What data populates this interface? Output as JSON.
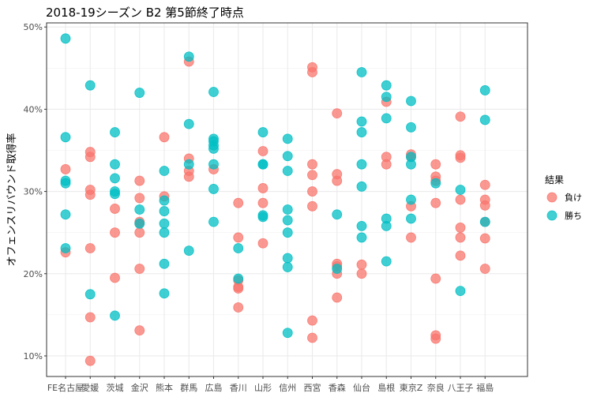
{
  "chart_data": {
    "type": "scatter",
    "title": "2018-19シーズン B2 第5節終了時点",
    "xlabel": "",
    "ylabel": "オフェンスリバウンド取得率",
    "categories": [
      "FE名古屋",
      "愛媛",
      "茨城",
      "金沢",
      "熊本",
      "群馬",
      "広島",
      "香川",
      "山形",
      "信州",
      "西宮",
      "香森",
      "仙台",
      "島根",
      "東京Z",
      "奈良",
      "八王子",
      "福島"
    ],
    "ylim": [
      0.075,
      0.505
    ],
    "yticks": [
      0.1,
      0.2,
      0.3,
      0.4,
      0.5
    ],
    "ytick_labels": [
      "10%",
      "20%",
      "30%",
      "40%",
      "50%"
    ],
    "grid": true,
    "legend": {
      "title": "結果",
      "position": "right"
    },
    "series": [
      {
        "name": "負け",
        "color": "#F8766D",
        "points": [
          [
            "FE名古屋",
            0.327
          ],
          [
            "FE名古屋",
            0.226
          ],
          [
            "愛媛",
            0.348
          ],
          [
            "愛媛",
            0.342
          ],
          [
            "愛媛",
            0.302
          ],
          [
            "愛媛",
            0.296
          ],
          [
            "愛媛",
            0.231
          ],
          [
            "愛媛",
            0.147
          ],
          [
            "愛媛",
            0.094
          ],
          [
            "茨城",
            0.279
          ],
          [
            "茨城",
            0.25
          ],
          [
            "茨城",
            0.195
          ],
          [
            "金沢",
            0.313
          ],
          [
            "金沢",
            0.292
          ],
          [
            "金沢",
            0.263
          ],
          [
            "金沢",
            0.261
          ],
          [
            "金沢",
            0.25
          ],
          [
            "金沢",
            0.206
          ],
          [
            "金沢",
            0.131
          ],
          [
            "熊本",
            0.366
          ],
          [
            "熊本",
            0.294
          ],
          [
            "群馬",
            0.458
          ],
          [
            "群馬",
            0.34
          ],
          [
            "群馬",
            0.325
          ],
          [
            "群馬",
            0.318
          ],
          [
            "広島",
            0.327
          ],
          [
            "香川",
            0.286
          ],
          [
            "香川",
            0.244
          ],
          [
            "香川",
            0.192
          ],
          [
            "香川",
            0.184
          ],
          [
            "香川",
            0.182
          ],
          [
            "香川",
            0.159
          ],
          [
            "山形",
            0.349
          ],
          [
            "山形",
            0.304
          ],
          [
            "山形",
            0.286
          ],
          [
            "山形",
            0.237
          ],
          [
            "西宮",
            0.451
          ],
          [
            "西宮",
            0.445
          ],
          [
            "西宮",
            0.333
          ],
          [
            "西宮",
            0.32
          ],
          [
            "西宮",
            0.3
          ],
          [
            "西宮",
            0.282
          ],
          [
            "西宮",
            0.143
          ],
          [
            "西宮",
            0.122
          ],
          [
            "香森",
            0.395
          ],
          [
            "香森",
            0.321
          ],
          [
            "香森",
            0.313
          ],
          [
            "香森",
            0.212
          ],
          [
            "香森",
            0.209
          ],
          [
            "香森",
            0.2
          ],
          [
            "香森",
            0.171
          ],
          [
            "仙台",
            0.211
          ],
          [
            "仙台",
            0.2
          ],
          [
            "島根",
            0.409
          ],
          [
            "島根",
            0.342
          ],
          [
            "島根",
            0.333
          ],
          [
            "東京Z",
            0.345
          ],
          [
            "東京Z",
            0.342
          ],
          [
            "東京Z",
            0.282
          ],
          [
            "東京Z",
            0.244
          ],
          [
            "奈良",
            0.333
          ],
          [
            "奈良",
            0.318
          ],
          [
            "奈良",
            0.313
          ],
          [
            "奈良",
            0.286
          ],
          [
            "奈良",
            0.194
          ],
          [
            "奈良",
            0.125
          ],
          [
            "奈良",
            0.121
          ],
          [
            "八王子",
            0.391
          ],
          [
            "八王子",
            0.344
          ],
          [
            "八王子",
            0.341
          ],
          [
            "八王子",
            0.29
          ],
          [
            "八王子",
            0.256
          ],
          [
            "八王子",
            0.244
          ],
          [
            "八王子",
            0.222
          ],
          [
            "福島",
            0.308
          ],
          [
            "福島",
            0.29
          ],
          [
            "福島",
            0.283
          ],
          [
            "福島",
            0.263
          ],
          [
            "福島",
            0.243
          ],
          [
            "福島",
            0.206
          ]
        ]
      },
      {
        "name": "勝ち",
        "color": "#00BFC4",
        "points": [
          [
            "FE名古屋",
            0.486
          ],
          [
            "FE名古屋",
            0.366
          ],
          [
            "FE名古屋",
            0.313
          ],
          [
            "FE名古屋",
            0.31
          ],
          [
            "FE名古屋",
            0.272
          ],
          [
            "FE名古屋",
            0.231
          ],
          [
            "愛媛",
            0.429
          ],
          [
            "愛媛",
            0.175
          ],
          [
            "茨城",
            0.372
          ],
          [
            "茨城",
            0.333
          ],
          [
            "茨城",
            0.316
          ],
          [
            "茨城",
            0.3
          ],
          [
            "茨城",
            0.297
          ],
          [
            "茨城",
            0.149
          ],
          [
            "金沢",
            0.42
          ],
          [
            "金沢",
            0.278
          ],
          [
            "金沢",
            0.261
          ],
          [
            "熊本",
            0.325
          ],
          [
            "熊本",
            0.289
          ],
          [
            "熊本",
            0.276
          ],
          [
            "熊本",
            0.261
          ],
          [
            "熊本",
            0.25
          ],
          [
            "熊本",
            0.212
          ],
          [
            "熊本",
            0.176
          ],
          [
            "群馬",
            0.464
          ],
          [
            "群馬",
            0.382
          ],
          [
            "群馬",
            0.333
          ],
          [
            "群馬",
            0.228
          ],
          [
            "広島",
            0.421
          ],
          [
            "広島",
            0.364
          ],
          [
            "広島",
            0.361
          ],
          [
            "広島",
            0.356
          ],
          [
            "広島",
            0.352
          ],
          [
            "広島",
            0.333
          ],
          [
            "広島",
            0.303
          ],
          [
            "広島",
            0.263
          ],
          [
            "香川",
            0.231
          ],
          [
            "香川",
            0.194
          ],
          [
            "山形",
            0.372
          ],
          [
            "山形",
            0.333
          ],
          [
            "山形",
            0.333
          ],
          [
            "山形",
            0.271
          ],
          [
            "山形",
            0.269
          ],
          [
            "信州",
            0.364
          ],
          [
            "信州",
            0.343
          ],
          [
            "信州",
            0.325
          ],
          [
            "信州",
            0.278
          ],
          [
            "信州",
            0.265
          ],
          [
            "信州",
            0.25
          ],
          [
            "信州",
            0.219
          ],
          [
            "信州",
            0.208
          ],
          [
            "信州",
            0.128
          ],
          [
            "香森",
            0.272
          ],
          [
            "香森",
            0.206
          ],
          [
            "仙台",
            0.445
          ],
          [
            "仙台",
            0.385
          ],
          [
            "仙台",
            0.372
          ],
          [
            "仙台",
            0.333
          ],
          [
            "仙台",
            0.306
          ],
          [
            "仙台",
            0.258
          ],
          [
            "仙台",
            0.244
          ],
          [
            "島根",
            0.429
          ],
          [
            "島根",
            0.415
          ],
          [
            "島根",
            0.389
          ],
          [
            "島根",
            0.267
          ],
          [
            "島根",
            0.258
          ],
          [
            "島根",
            0.215
          ],
          [
            "東京Z",
            0.41
          ],
          [
            "東京Z",
            0.378
          ],
          [
            "東京Z",
            0.342
          ],
          [
            "東京Z",
            0.333
          ],
          [
            "東京Z",
            0.29
          ],
          [
            "東京Z",
            0.267
          ],
          [
            "奈良",
            0.31
          ],
          [
            "八王子",
            0.302
          ],
          [
            "八王子",
            0.179
          ],
          [
            "福島",
            0.423
          ],
          [
            "福島",
            0.387
          ],
          [
            "福島",
            0.263
          ]
        ]
      }
    ]
  }
}
